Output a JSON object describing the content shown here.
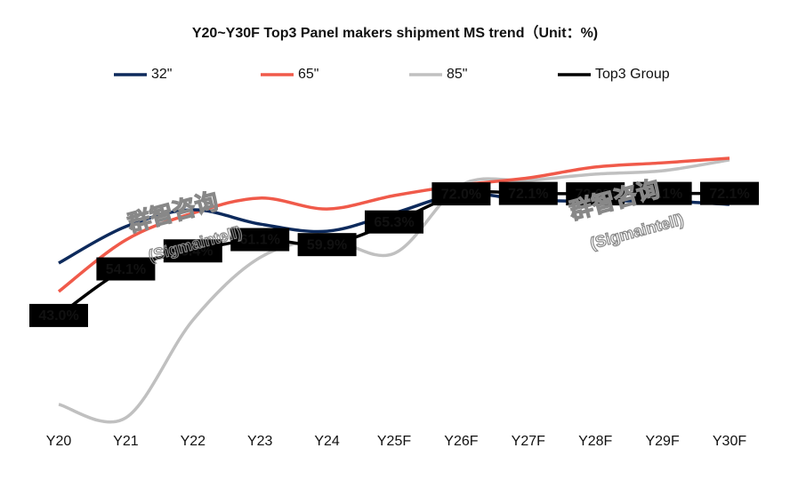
{
  "chart_data": {
    "type": "line",
    "title": "Y20~Y30F Top3 Panel makers shipment MS trend（Unit：%)",
    "watermark": [
      "群智咨询",
      "(Sigmaintell)"
    ],
    "categories": [
      "Y20",
      "Y21",
      "Y22",
      "Y23",
      "Y24",
      "Y25F",
      "Y26F",
      "Y27F",
      "Y28F",
      "Y29F",
      "Y30F"
    ],
    "series": [
      {
        "name": "32\"",
        "color": "#0d2a5c",
        "values": [
          55.5,
          64.2,
          68.2,
          64.8,
          63.1,
          67.4,
          72.0,
          70.5,
          70.3,
          70.3,
          69.5
        ]
      },
      {
        "name": "65\"",
        "color": "#f05a4a",
        "values": [
          48.7,
          61.0,
          67.4,
          71.0,
          68.4,
          71.6,
          74.1,
          75.8,
          78.4,
          79.4,
          80.5
        ]
      },
      {
        "name": "85\"",
        "color": "#c0c0c0",
        "values": [
          21.8,
          18.6,
          41.9,
          56.8,
          61.0,
          57.8,
          74.1,
          75.2,
          76.7,
          77.5,
          80.1
        ]
      },
      {
        "name": "Top3 Group",
        "color": "#000000",
        "values": [
          43.0,
          54.1,
          58.4,
          61.1,
          59.9,
          65.3,
          72.0,
          72.1,
          72.0,
          72.1,
          72.1
        ],
        "value_labels": [
          "43.0%",
          "54.1%",
          "58.4%",
          "61.1%",
          "59.9%",
          "65.3%",
          "72.0%",
          "72.1%",
          "72.0%",
          "72.1%",
          "72.1%"
        ]
      }
    ],
    "grid": false
  }
}
